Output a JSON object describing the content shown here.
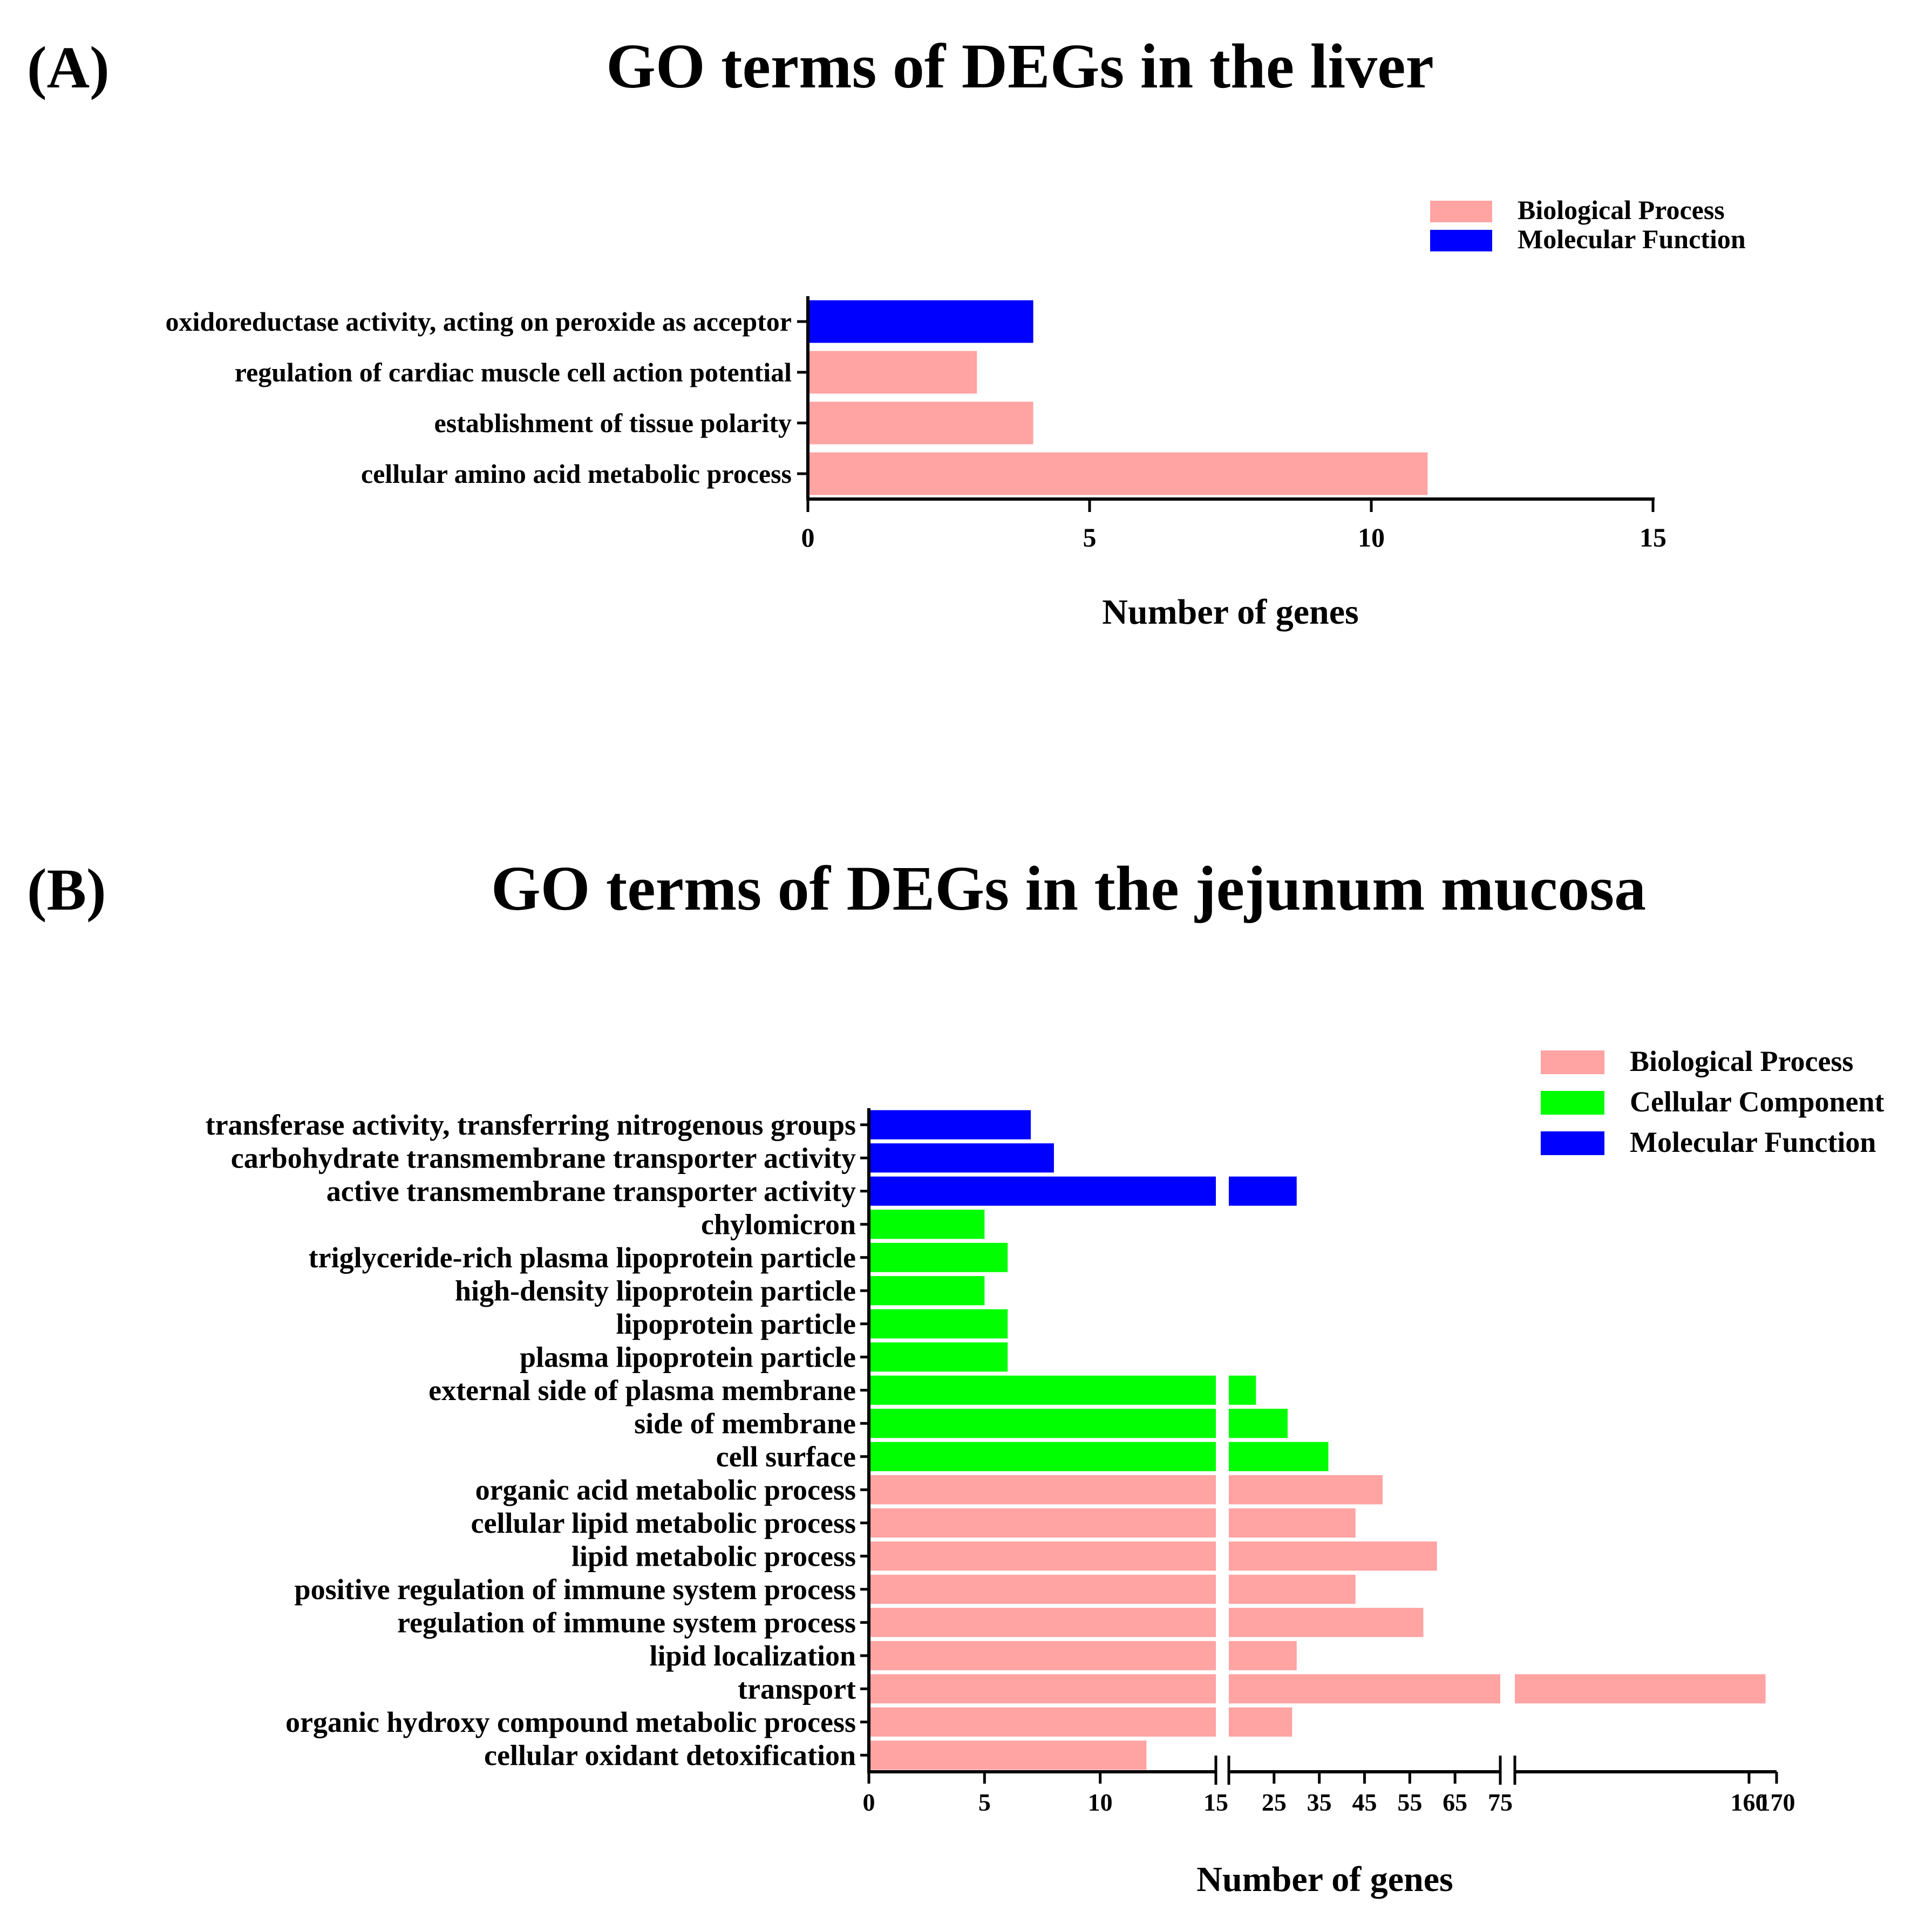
{
  "colors": {
    "biological_process": "#FFA3A3",
    "cellular_component": "#00FF00",
    "molecular_function": "#0000FF"
  },
  "chart_data": [
    {
      "panel": "(A)",
      "type": "bar",
      "orientation": "horizontal",
      "title": "GO terms of DEGs in the liver",
      "xlabel": "Number of genes",
      "ylabel": "",
      "xlim": [
        0,
        15
      ],
      "xticks": [
        "0",
        "5",
        "10",
        "15"
      ],
      "legend": {
        "position": "top-right",
        "entries": [
          {
            "label": "Biological Process",
            "category": "biological_process"
          },
          {
            "label": "Molecular Function",
            "category": "molecular_function"
          }
        ]
      },
      "categories": [
        "oxidoreductase activity, acting on peroxide as acceptor",
        "regulation of cardiac muscle cell action potential",
        "establishment of tissue polarity",
        "cellular amino acid metabolic process"
      ],
      "values": [
        4,
        3,
        4,
        11
      ],
      "groups": [
        "molecular_function",
        "biological_process",
        "biological_process",
        "biological_process"
      ]
    },
    {
      "panel": "(B)",
      "type": "bar",
      "orientation": "horizontal",
      "title": "GO terms of DEGs in the jejunum mucosa",
      "xlabel": "Number of genes",
      "ylabel": "",
      "axis_breaks": true,
      "axis_segments": [
        {
          "range": [
            0,
            15
          ],
          "ticks": [
            0,
            5,
            10,
            15
          ]
        },
        {
          "range": [
            15,
            75
          ],
          "ticks": [
            15,
            25,
            35,
            45,
            55,
            65,
            75
          ]
        },
        {
          "range": [
            75,
            170
          ],
          "ticks": [
            160,
            170
          ]
        }
      ],
      "xtick_labels": [
        "0",
        "5",
        "10",
        "15",
        "25",
        "35",
        "45",
        "55",
        "65",
        "75",
        "160",
        "170"
      ],
      "legend": {
        "position": "top-right",
        "entries": [
          {
            "label": "Biological Process",
            "category": "biological_process"
          },
          {
            "label": "Cellular Component",
            "category": "cellular_component"
          },
          {
            "label": "Molecular Function",
            "category": "molecular_function"
          }
        ]
      },
      "categories": [
        "transferase activity, transferring nitrogenous groups",
        "carbohydrate transmembrane transporter activity",
        "active transmembrane transporter activity",
        "chylomicron",
        "triglyceride-rich plasma lipoprotein particle",
        "high-density lipoprotein particle",
        "lipoprotein particle",
        "plasma lipoprotein particle",
        "external side of plasma membrane",
        "side of membrane",
        "cell surface",
        "organic acid metabolic process",
        "cellular lipid metabolic process",
        "lipid metabolic process",
        "positive regulation of immune system process",
        "regulation of immune system process",
        "lipid localization",
        "transport",
        "organic hydroxy compound metabolic process",
        "cellular oxidant detoxification"
      ],
      "values": [
        7,
        8,
        30,
        5,
        6,
        5,
        6,
        6,
        21,
        28,
        37,
        49,
        43,
        61,
        43,
        58,
        30,
        166,
        29,
        12
      ],
      "groups": [
        "molecular_function",
        "molecular_function",
        "molecular_function",
        "cellular_component",
        "cellular_component",
        "cellular_component",
        "cellular_component",
        "cellular_component",
        "cellular_component",
        "cellular_component",
        "cellular_component",
        "biological_process",
        "biological_process",
        "biological_process",
        "biological_process",
        "biological_process",
        "biological_process",
        "biological_process",
        "biological_process",
        "biological_process"
      ]
    }
  ]
}
